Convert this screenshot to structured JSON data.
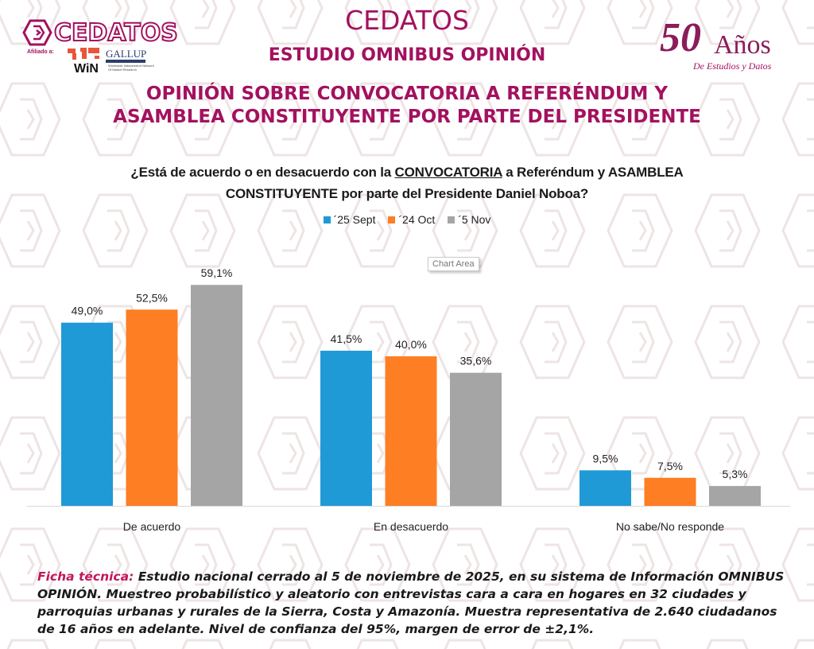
{
  "header": {
    "brand_logo_text": "CEDATOS",
    "affiliation_label": "Afiliado a:",
    "partner_win": "WiN",
    "partner_win_subtitle": "Worldwide Independent Network Of Market Research",
    "partner_gallup": "GALLUP",
    "title": "CEDATOS",
    "subtitle": "ESTUDIO OMNIBUS OPINIÓN",
    "headline_line1": "OPINIÓN SOBRE CONVOCATORIA A REFERÉNDUM Y",
    "headline_line2": "ASAMBLEA CONSTITUYENTE POR PARTE DEL PRESIDENTE",
    "anniversary_number": "50",
    "anniversary_word": "Años",
    "anniversary_tagline": "De Estudios y Datos"
  },
  "colors": {
    "brand": "#a3115f",
    "series_1": "#1f9ad6",
    "series_2": "#fd7e23",
    "series_3": "#a5a5a5",
    "ficha_label": "#c2175b"
  },
  "tooltip": "Chart Area",
  "chart_data": {
    "type": "bar",
    "title": "¿Está de acuerdo o en desacuerdo con la CONVOCATORIA a Referéndum y ASAMBLEA CONSTITUYENTE por parte del Presidente Daniel Noboa?",
    "title_part1": "¿Está de acuerdo o en desacuerdo con la ",
    "title_underlined": "CONVOCATORIA",
    "title_part2": " a Referéndum y ASAMBLEA",
    "title_line2": "CONSTITUYENTE por parte del Presidente Daniel Noboa?",
    "xlabel": "",
    "ylabel": "",
    "ylim": [
      0,
      65
    ],
    "grid": false,
    "legend_position": "top-center",
    "categories": [
      "De acuerdo",
      "En desacuerdo",
      "No sabe/No responde"
    ],
    "series": [
      {
        "name": "´25 Sept",
        "color": "#1f9ad6",
        "values": [
          49.0,
          41.5,
          9.5
        ],
        "labels": [
          "49,0%",
          "41,5%",
          "9,5%"
        ]
      },
      {
        "name": "´24 Oct",
        "color": "#fd7e23",
        "values": [
          52.5,
          40.0,
          7.5
        ],
        "labels": [
          "52,5%",
          "40,0%",
          "7,5%"
        ]
      },
      {
        "name": "´5 Nov",
        "color": "#a5a5a5",
        "values": [
          59.1,
          35.6,
          5.3
        ],
        "labels": [
          "59,1%",
          "35,6%",
          "5,3%"
        ]
      }
    ]
  },
  "ficha": {
    "label": "Ficha técnica:",
    "text": " Estudio nacional cerrado al 5 de noviembre de 2025, en su sistema de Información OMNIBUS OPINIÓN. Muestreo probabilístico y aleatorio con entrevistas cara a cara en hogares en 32 ciudades y parroquias urbanas y rurales de la Sierra, Costa y Amazonía. Muestra representativa de 2.640 ciudadanos de 16 años en adelante. Nivel de confianza del 95%, margen de error de ±2,1%."
  }
}
